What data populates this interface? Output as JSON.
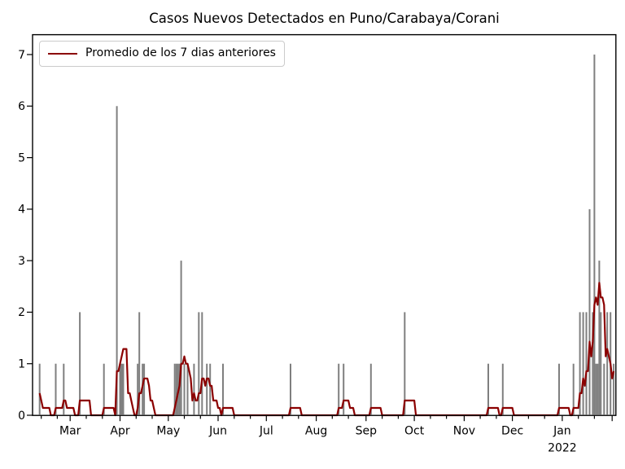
{
  "chart": {
    "title": "Casos Nuevos Detectados en Puno/Carabaya/Corani",
    "legend_label": "Promedio de los 7 dias anteriores",
    "year_label": "2022"
  },
  "chart_data": {
    "type": "bar",
    "title": "Casos Nuevos Detectados en Puno/Carabaya/Corani",
    "xlabel": "",
    "ylabel": "",
    "ylim": [
      0,
      7.39
    ],
    "yticks": [
      0,
      1,
      2,
      3,
      4,
      5,
      6,
      7
    ],
    "grid": false,
    "legend_position": "upper left",
    "legend_label": "Promedio de los 7 dias anteriores",
    "colors": {
      "bars": "#7f7f7f",
      "line": "#8b0000",
      "axis": "#000000",
      "background": "#ffffff",
      "legend_border": "#cbcbcb"
    },
    "x_axis": {
      "start_date": "2021-02-06",
      "end_date": "2022-02-03",
      "year_label": "2022",
      "year_label_day": 329,
      "month_ticks": [
        {
          "label": "Mar",
          "day": 23
        },
        {
          "label": "Apr",
          "day": 54
        },
        {
          "label": "May",
          "day": 84
        },
        {
          "label": "Jun",
          "day": 115
        },
        {
          "label": "Jul",
          "day": 145
        },
        {
          "label": "Aug",
          "day": 176
        },
        {
          "label": "Sep",
          "day": 207
        },
        {
          "label": "Oct",
          "day": 237
        },
        {
          "label": "Nov",
          "day": 268
        },
        {
          "label": "Dec",
          "day": 298
        },
        {
          "label": "Jan",
          "day": 329
        }
      ],
      "extra_major_tick_days": [
        360
      ],
      "minor_tick_days": [
        5,
        15,
        33,
        43,
        64,
        74,
        94,
        104,
        125,
        135,
        155,
        165,
        186,
        196,
        217,
        227,
        247,
        257,
        278,
        288,
        308,
        318,
        339,
        349
      ]
    },
    "line_series": {
      "name": "Promedio de los 7 dias anteriores",
      "derivation": "rolling_mean_of_previous_7_days_of_daily_bars",
      "starts_at_day": 4,
      "ends_at_day": 361
    },
    "daily_bars": [
      {
        "date": "2021-02-04",
        "d": -2,
        "v": 1,
        "offscreen": true
      },
      {
        "date": "2021-02-05",
        "d": -1,
        "v": 1,
        "offscreen": true
      },
      {
        "date": "2021-02-10",
        "d": 4,
        "v": 1
      },
      {
        "date": "2021-02-20",
        "d": 14,
        "v": 1
      },
      {
        "date": "2021-02-25",
        "d": 19,
        "v": 1
      },
      {
        "date": "2021-03-07",
        "d": 29,
        "v": 2
      },
      {
        "date": "2021-03-22",
        "d": 44,
        "v": 1
      },
      {
        "date": "2021-03-30",
        "d": 52,
        "v": 6
      },
      {
        "date": "2021-04-01",
        "d": 54,
        "v": 1
      },
      {
        "date": "2021-04-02",
        "d": 55,
        "v": 1
      },
      {
        "date": "2021-04-03",
        "d": 56,
        "v": 1
      },
      {
        "date": "2021-04-12",
        "d": 65,
        "v": 1
      },
      {
        "date": "2021-04-13",
        "d": 66,
        "v": 2
      },
      {
        "date": "2021-04-15",
        "d": 68,
        "v": 1
      },
      {
        "date": "2021-04-16",
        "d": 69,
        "v": 1
      },
      {
        "date": "2021-05-05",
        "d": 88,
        "v": 1
      },
      {
        "date": "2021-05-06",
        "d": 89,
        "v": 1
      },
      {
        "date": "2021-05-07",
        "d": 90,
        "v": 1
      },
      {
        "date": "2021-05-08",
        "d": 91,
        "v": 1
      },
      {
        "date": "2021-05-09",
        "d": 92,
        "v": 3
      },
      {
        "date": "2021-05-11",
        "d": 94,
        "v": 1
      },
      {
        "date": "2021-05-13",
        "d": 96,
        "v": 1
      },
      {
        "date": "2021-05-17",
        "d": 100,
        "v": 1
      },
      {
        "date": "2021-05-20",
        "d": 103,
        "v": 2
      },
      {
        "date": "2021-05-22",
        "d": 105,
        "v": 2
      },
      {
        "date": "2021-05-25",
        "d": 108,
        "v": 1
      },
      {
        "date": "2021-05-27",
        "d": 110,
        "v": 1
      },
      {
        "date": "2021-06-04",
        "d": 118,
        "v": 1
      },
      {
        "date": "2021-07-16",
        "d": 160,
        "v": 1
      },
      {
        "date": "2021-08-15",
        "d": 190,
        "v": 1
      },
      {
        "date": "2021-08-18",
        "d": 193,
        "v": 1
      },
      {
        "date": "2021-09-04",
        "d": 210,
        "v": 1
      },
      {
        "date": "2021-09-25",
        "d": 231,
        "v": 2
      },
      {
        "date": "2021-11-16",
        "d": 283,
        "v": 1
      },
      {
        "date": "2021-11-25",
        "d": 292,
        "v": 1
      },
      {
        "date": "2021-12-30",
        "d": 327,
        "v": 1
      },
      {
        "date": "2022-01-08",
        "d": 336,
        "v": 1
      },
      {
        "date": "2022-01-12",
        "d": 340,
        "v": 2
      },
      {
        "date": "2022-01-14",
        "d": 342,
        "v": 2
      },
      {
        "date": "2022-01-16",
        "d": 344,
        "v": 2
      },
      {
        "date": "2022-01-18",
        "d": 346,
        "v": 4
      },
      {
        "date": "2022-01-20",
        "d": 348,
        "v": 2
      },
      {
        "date": "2022-01-21",
        "d": 349,
        "v": 7
      },
      {
        "date": "2022-01-22",
        "d": 350,
        "v": 1
      },
      {
        "date": "2022-01-23",
        "d": 351,
        "v": 1
      },
      {
        "date": "2022-01-24",
        "d": 352,
        "v": 3
      },
      {
        "date": "2022-01-25",
        "d": 353,
        "v": 2
      },
      {
        "date": "2022-01-27",
        "d": 355,
        "v": 1
      },
      {
        "date": "2022-01-29",
        "d": 357,
        "v": 2
      },
      {
        "date": "2022-01-31",
        "d": 359,
        "v": 2
      },
      {
        "date": "2022-02-02",
        "d": 361,
        "v": 1
      }
    ]
  }
}
